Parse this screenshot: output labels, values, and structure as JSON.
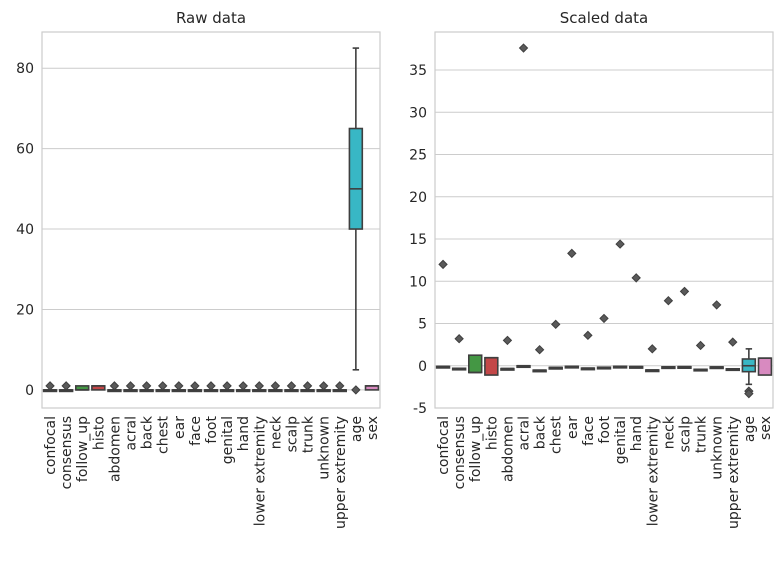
{
  "figure": {
    "background": "#ffffff",
    "grid_color": "#cccccc",
    "spine_color": "#cccccc",
    "whisker_color": "#3f3f3f"
  },
  "chart_data": [
    {
      "type": "box",
      "title": "Raw data",
      "xlabel": "",
      "ylabel": "",
      "ylim": [
        -4.5,
        89
      ],
      "yticks": [
        0,
        20,
        40,
        60,
        80
      ],
      "grid": "horizontal",
      "categories": [
        "confocal",
        "consensus",
        "follow_up",
        "histo",
        "abdomen",
        "acral",
        "back",
        "chest",
        "ear",
        "face",
        "foot",
        "genital",
        "hand",
        "lower extremity",
        "neck",
        "scalp",
        "trunk",
        "unknown",
        "upper extremity",
        "age",
        "sex"
      ],
      "colors": [
        "#3274a1",
        "#e1812c",
        "#3a923a",
        "#c03d3e",
        "#9372b2",
        "#845b53",
        "#d684bd",
        "#7f7f7f",
        "#a9aa35",
        "#2eb3c2",
        "#3274a1",
        "#e1812c",
        "#3a923a",
        "#c03d3e",
        "#9372b2",
        "#845b53",
        "#d684bd",
        "#7f7f7f",
        "#a9aa35",
        "#2eb3c2",
        "#d684bd"
      ],
      "boxes": [
        {
          "q1": 0,
          "median": 0,
          "q3": 0,
          "whislo": 0,
          "whishi": 0,
          "fliers": [
            1
          ]
        },
        {
          "q1": 0,
          "median": 0,
          "q3": 0,
          "whislo": 0,
          "whishi": 0,
          "fliers": [
            1
          ]
        },
        {
          "q1": 0,
          "median": 0,
          "q3": 1,
          "whislo": 0,
          "whishi": 1,
          "fliers": []
        },
        {
          "q1": 0,
          "median": 1,
          "q3": 1,
          "whislo": 0,
          "whishi": 1,
          "fliers": []
        },
        {
          "q1": 0,
          "median": 0,
          "q3": 0,
          "whislo": 0,
          "whishi": 0,
          "fliers": [
            1
          ]
        },
        {
          "q1": 0,
          "median": 0,
          "q3": 0,
          "whislo": 0,
          "whishi": 0,
          "fliers": [
            1
          ]
        },
        {
          "q1": 0,
          "median": 0,
          "q3": 0,
          "whislo": 0,
          "whishi": 0,
          "fliers": [
            1
          ]
        },
        {
          "q1": 0,
          "median": 0,
          "q3": 0,
          "whislo": 0,
          "whishi": 0,
          "fliers": [
            1
          ]
        },
        {
          "q1": 0,
          "median": 0,
          "q3": 0,
          "whislo": 0,
          "whishi": 0,
          "fliers": [
            1
          ]
        },
        {
          "q1": 0,
          "median": 0,
          "q3": 0,
          "whislo": 0,
          "whishi": 0,
          "fliers": [
            1
          ]
        },
        {
          "q1": 0,
          "median": 0,
          "q3": 0,
          "whislo": 0,
          "whishi": 0,
          "fliers": [
            1
          ]
        },
        {
          "q1": 0,
          "median": 0,
          "q3": 0,
          "whislo": 0,
          "whishi": 0,
          "fliers": [
            1
          ]
        },
        {
          "q1": 0,
          "median": 0,
          "q3": 0,
          "whislo": 0,
          "whishi": 0,
          "fliers": [
            1
          ]
        },
        {
          "q1": 0,
          "median": 0,
          "q3": 0,
          "whislo": 0,
          "whishi": 0,
          "fliers": [
            1
          ]
        },
        {
          "q1": 0,
          "median": 0,
          "q3": 0,
          "whislo": 0,
          "whishi": 0,
          "fliers": [
            1
          ]
        },
        {
          "q1": 0,
          "median": 0,
          "q3": 0,
          "whislo": 0,
          "whishi": 0,
          "fliers": [
            1
          ]
        },
        {
          "q1": 0,
          "median": 0,
          "q3": 0,
          "whislo": 0,
          "whishi": 0,
          "fliers": [
            1
          ]
        },
        {
          "q1": 0,
          "median": 0,
          "q3": 0,
          "whislo": 0,
          "whishi": 0,
          "fliers": [
            1
          ]
        },
        {
          "q1": 0,
          "median": 0,
          "q3": 0,
          "whislo": 0,
          "whishi": 0,
          "fliers": [
            1
          ]
        },
        {
          "q1": 40,
          "median": 50,
          "q3": 65,
          "whislo": 5,
          "whishi": 85,
          "fliers": [
            0
          ]
        },
        {
          "q1": 0,
          "median": 1,
          "q3": 1,
          "whislo": 0,
          "whishi": 1,
          "fliers": []
        }
      ]
    },
    {
      "type": "box",
      "title": "Scaled data",
      "xlabel": "",
      "ylabel": "",
      "ylim": [
        -5,
        39.5
      ],
      "yticks": [
        -5,
        0,
        5,
        10,
        15,
        20,
        25,
        30,
        35
      ],
      "grid": "horizontal",
      "categories": [
        "confocal",
        "consensus",
        "follow_up",
        "histo",
        "abdomen",
        "acral",
        "back",
        "chest",
        "ear",
        "face",
        "foot",
        "genital",
        "hand",
        "lower extremity",
        "neck",
        "scalp",
        "trunk",
        "unknown",
        "upper extremity",
        "age",
        "sex"
      ],
      "colors": [
        "#3274a1",
        "#e1812c",
        "#3a923a",
        "#c03d3e",
        "#9372b2",
        "#845b53",
        "#d684bd",
        "#7f7f7f",
        "#a9aa35",
        "#2eb3c2",
        "#3274a1",
        "#e1812c",
        "#3a923a",
        "#c03d3e",
        "#9372b2",
        "#845b53",
        "#d684bd",
        "#7f7f7f",
        "#a9aa35",
        "#2eb3c2",
        "#d684bd"
      ],
      "boxes": [
        {
          "q1": -0.08,
          "median": -0.08,
          "q3": -0.08,
          "whislo": -0.08,
          "whishi": -0.08,
          "fliers": [
            12.0
          ]
        },
        {
          "q1": -0.3,
          "median": -0.3,
          "q3": -0.3,
          "whislo": -0.3,
          "whishi": -0.3,
          "fliers": [
            3.2
          ]
        },
        {
          "q1": -0.8,
          "median": -0.8,
          "q3": 1.25,
          "whislo": -0.8,
          "whishi": 1.25,
          "fliers": []
        },
        {
          "q1": -1.1,
          "median": 0.95,
          "q3": 0.95,
          "whislo": -1.1,
          "whishi": 0.95,
          "fliers": []
        },
        {
          "q1": -0.33,
          "median": -0.33,
          "q3": -0.33,
          "whislo": -0.33,
          "whishi": -0.33,
          "fliers": [
            3.0
          ]
        },
        {
          "q1": 0.0,
          "median": 0.0,
          "q3": 0.0,
          "whislo": 0.0,
          "whishi": 0.0,
          "fliers": [
            37.6
          ]
        },
        {
          "q1": -0.52,
          "median": -0.52,
          "q3": -0.52,
          "whislo": -0.52,
          "whishi": -0.52,
          "fliers": [
            1.9
          ]
        },
        {
          "q1": -0.2,
          "median": -0.2,
          "q3": -0.2,
          "whislo": -0.2,
          "whishi": -0.2,
          "fliers": [
            4.9
          ]
        },
        {
          "q1": -0.07,
          "median": -0.07,
          "q3": -0.07,
          "whislo": -0.07,
          "whishi": -0.07,
          "fliers": [
            13.3
          ]
        },
        {
          "q1": -0.28,
          "median": -0.28,
          "q3": -0.28,
          "whislo": -0.28,
          "whishi": -0.28,
          "fliers": [
            3.6
          ]
        },
        {
          "q1": -0.18,
          "median": -0.18,
          "q3": -0.18,
          "whislo": -0.18,
          "whishi": -0.18,
          "fliers": [
            5.6
          ]
        },
        {
          "q1": -0.07,
          "median": -0.07,
          "q3": -0.07,
          "whislo": -0.07,
          "whishi": -0.07,
          "fliers": [
            14.4
          ]
        },
        {
          "q1": -0.1,
          "median": -0.1,
          "q3": -0.1,
          "whislo": -0.1,
          "whishi": -0.1,
          "fliers": [
            10.4
          ]
        },
        {
          "q1": -0.5,
          "median": -0.5,
          "q3": -0.5,
          "whislo": -0.5,
          "whishi": -0.5,
          "fliers": [
            2.0
          ]
        },
        {
          "q1": -0.13,
          "median": -0.13,
          "q3": -0.13,
          "whislo": -0.13,
          "whishi": -0.13,
          "fliers": [
            7.7
          ]
        },
        {
          "q1": -0.11,
          "median": -0.11,
          "q3": -0.11,
          "whislo": -0.11,
          "whishi": -0.11,
          "fliers": [
            8.8
          ]
        },
        {
          "q1": -0.42,
          "median": -0.42,
          "q3": -0.42,
          "whislo": -0.42,
          "whishi": -0.42,
          "fliers": [
            2.4
          ]
        },
        {
          "q1": -0.14,
          "median": -0.14,
          "q3": -0.14,
          "whislo": -0.14,
          "whishi": -0.14,
          "fliers": [
            7.2
          ]
        },
        {
          "q1": -0.36,
          "median": -0.36,
          "q3": -0.36,
          "whislo": -0.36,
          "whishi": -0.36,
          "fliers": [
            2.8
          ]
        },
        {
          "q1": -0.7,
          "median": 0.0,
          "q3": 0.8,
          "whislo": -2.2,
          "whishi": 2.0,
          "fliers": [
            -3.0,
            -3.3
          ]
        },
        {
          "q1": -1.1,
          "median": 0.9,
          "q3": 0.9,
          "whislo": -1.1,
          "whishi": 0.9,
          "fliers": []
        }
      ]
    }
  ]
}
